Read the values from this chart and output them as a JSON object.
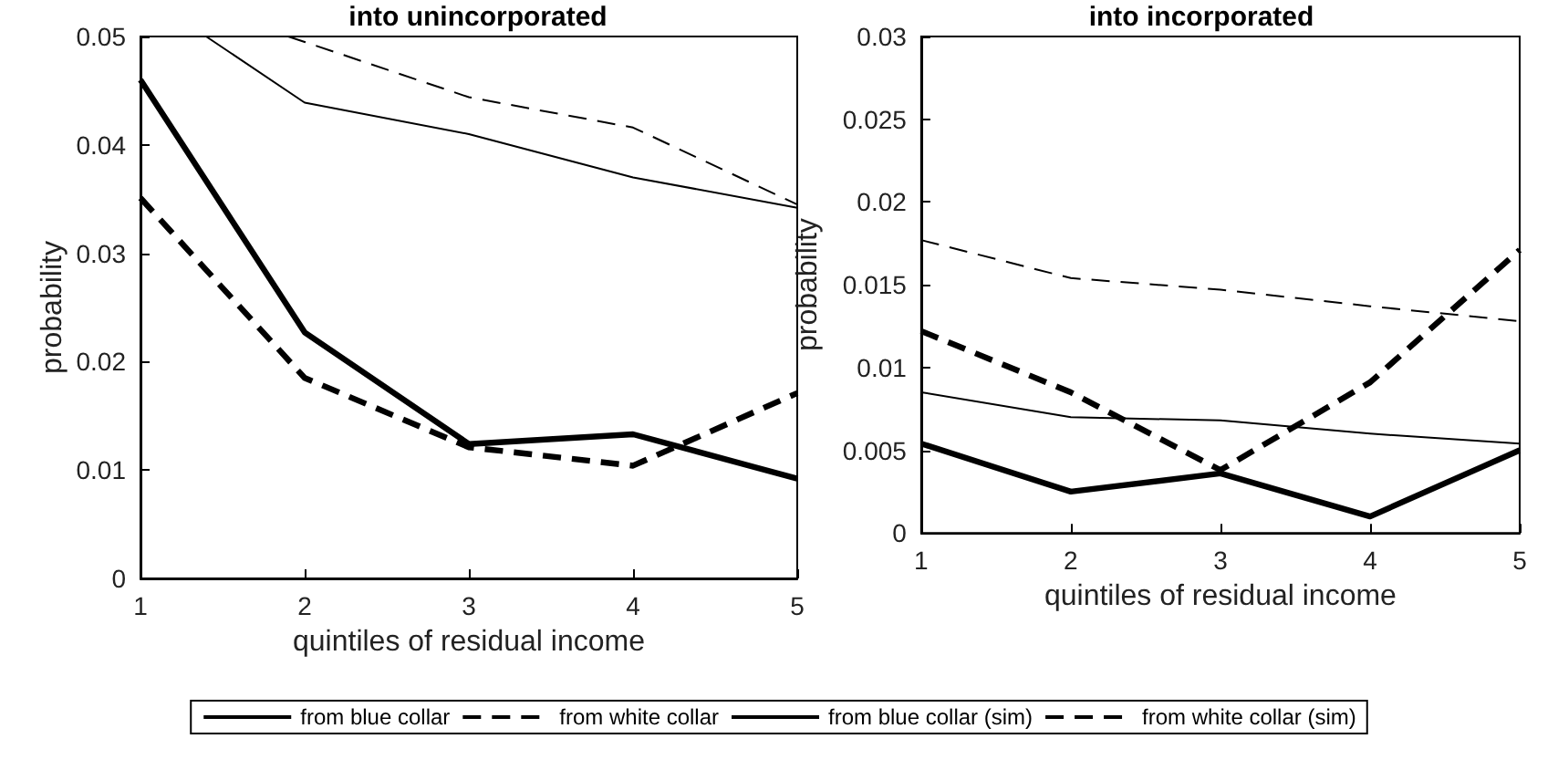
{
  "chart_data": [
    {
      "type": "line",
      "title": "into unincorporated",
      "xlabel": "quintiles of residual income",
      "ylabel": "probability",
      "x": [
        1,
        2,
        3,
        4,
        5
      ],
      "xlim": [
        1,
        5
      ],
      "xticks": [
        1,
        2,
        3,
        4,
        5
      ],
      "ylim": [
        0,
        0.05
      ],
      "yticks": [
        0,
        0.01,
        0.02,
        0.03,
        0.04,
        0.05
      ],
      "grid": false,
      "legend": "bottom",
      "series": [
        {
          "name": "from blue collar",
          "color": "#000000",
          "line_style": "solid",
          "values": [
            0.046,
            0.0227,
            0.0124,
            0.0133,
            0.0092
          ]
        },
        {
          "name": "from white collar",
          "color": "#000000",
          "line_style": "dashed",
          "values": [
            0.0351,
            0.0185,
            0.0121,
            0.0104,
            0.0171
          ]
        },
        {
          "name": "from blue collar (sim)",
          "color": "#000000",
          "line_style": "solid",
          "x": [
            1.4,
            2,
            3,
            4,
            5
          ],
          "values": [
            0.05,
            0.0439,
            0.041,
            0.037,
            0.0342
          ]
        },
        {
          "name": "from white collar (sim)",
          "color": "#000000",
          "line_style": "dashed",
          "x": [
            1.9,
            2,
            3,
            4,
            5
          ],
          "values": [
            0.05,
            0.0495,
            0.0444,
            0.0416,
            0.0345
          ]
        }
      ]
    },
    {
      "type": "line",
      "title": "into incorporated",
      "xlabel": "quintiles of residual income",
      "ylabel": "probability",
      "x": [
        1,
        2,
        3,
        4,
        5
      ],
      "xlim": [
        1,
        5
      ],
      "xticks": [
        1,
        2,
        3,
        4,
        5
      ],
      "ylim": [
        0,
        0.03
      ],
      "yticks": [
        0,
        0.005,
        0.01,
        0.015,
        0.02,
        0.025,
        0.03
      ],
      "grid": false,
      "series": [
        {
          "color": "#000000",
          "line_style": "solid",
          "values": [
            0.0054,
            0.0025,
            0.0036,
            0.001,
            0.005
          ]
        },
        {
          "color": "#000000",
          "line_style": "dashed",
          "values": [
            0.0122,
            0.0085,
            0.0038,
            0.0091,
            0.0171
          ]
        },
        {
          "color": "#000000",
          "line_style": "solid",
          "values": [
            0.0085,
            0.007,
            0.0068,
            0.006,
            0.0054
          ]
        },
        {
          "color": "#000000",
          "line_style": "dashed",
          "values": [
            0.0177,
            0.0154,
            0.0147,
            0.0137,
            0.0128
          ]
        }
      ]
    }
  ]
}
